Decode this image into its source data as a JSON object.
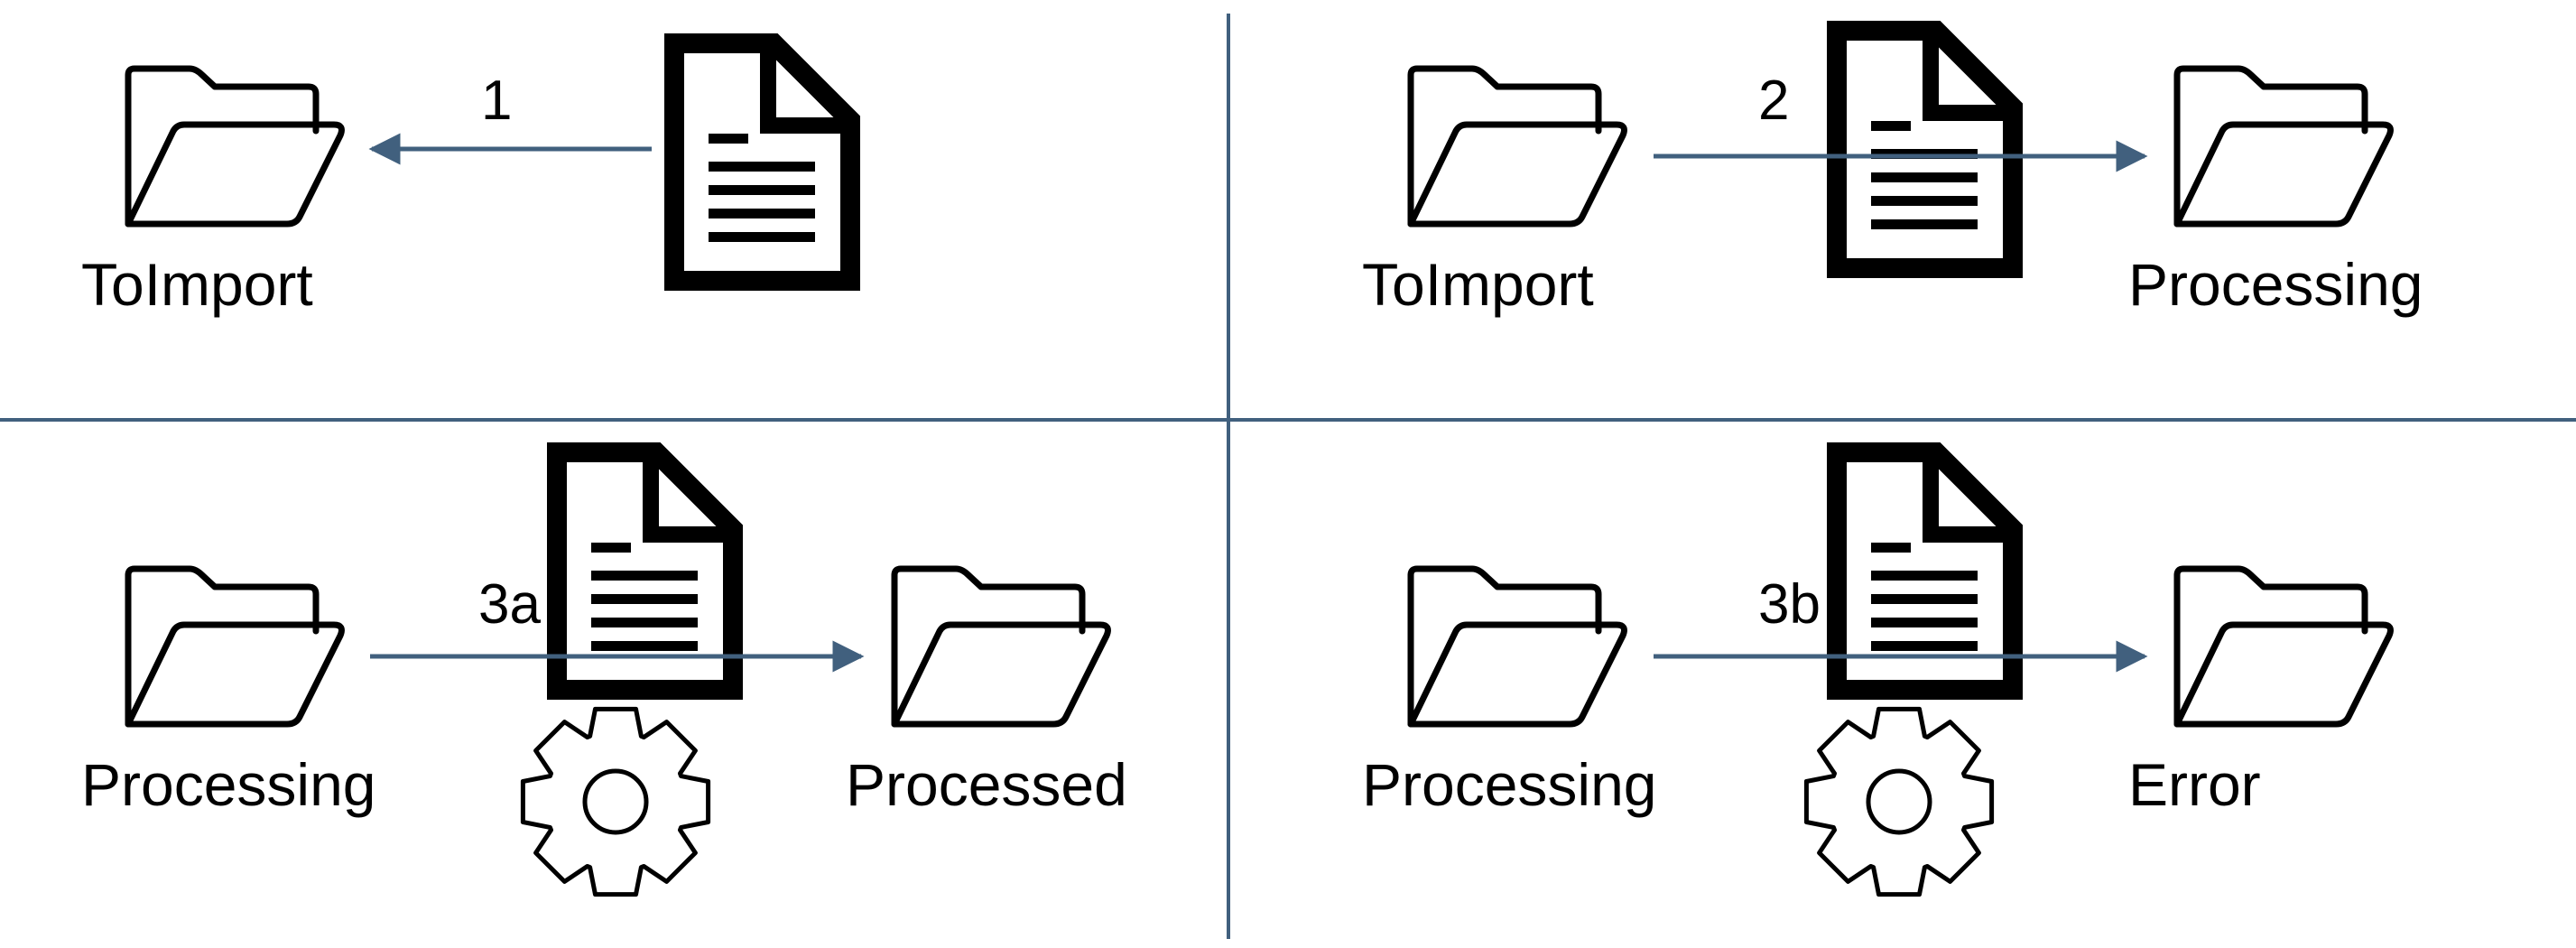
{
  "colors": {
    "background": "#ffffff",
    "divider": "#41607e",
    "arrow": "#41607e",
    "icon": "#000000"
  },
  "panels": [
    {
      "name": "step-1",
      "step_label": "1",
      "folders": [
        "ToImport"
      ],
      "icons": [
        "document-icon"
      ]
    },
    {
      "name": "step-2",
      "step_label": "2",
      "folders": [
        "ToImport",
        "Processing"
      ],
      "icons": [
        "document-icon"
      ]
    },
    {
      "name": "step-3a",
      "step_label": "3a",
      "folders": [
        "Processing",
        "Processed"
      ],
      "icons": [
        "document-icon",
        "gear-icon"
      ]
    },
    {
      "name": "step-3b",
      "step_label": "3b",
      "folders": [
        "Processing",
        "Error"
      ],
      "icons": [
        "document-icon",
        "gear-icon"
      ]
    }
  ]
}
